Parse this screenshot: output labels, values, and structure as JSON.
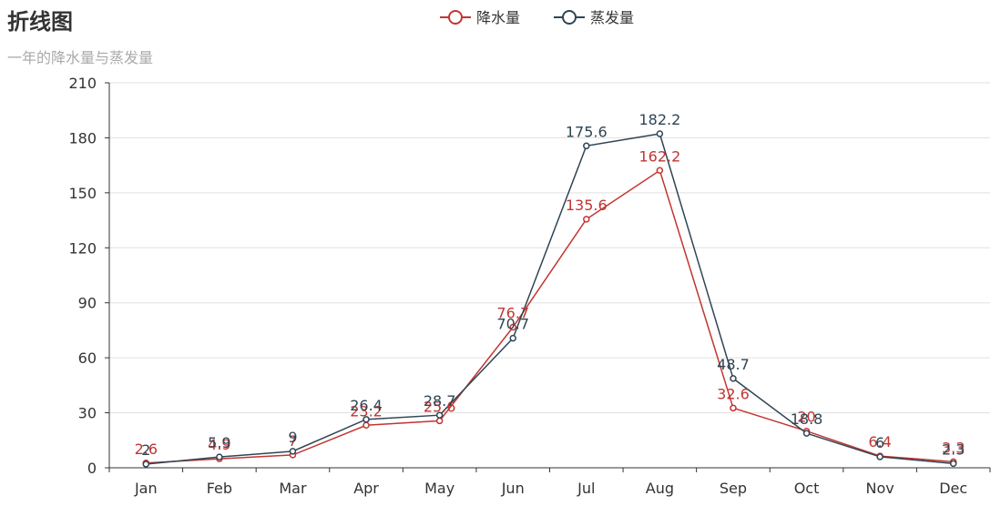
{
  "chart_data": {
    "type": "line",
    "title": "折线图",
    "subtitle": "一年的降水量与蒸发量",
    "categories": [
      "Jan",
      "Feb",
      "Mar",
      "Apr",
      "May",
      "Jun",
      "Jul",
      "Aug",
      "Sep",
      "Oct",
      "Nov",
      "Dec"
    ],
    "series": [
      {
        "name": "降水量",
        "color": "#c23531",
        "values": [
          2.6,
          4.9,
          7,
          23.2,
          25.6,
          76.7,
          135.6,
          162.2,
          32.6,
          20,
          6.4,
          3.3
        ]
      },
      {
        "name": "蒸发量",
        "color": "#2f4554",
        "values": [
          2,
          5.9,
          9,
          26.4,
          28.7,
          70.7,
          175.6,
          182.2,
          48.7,
          18.8,
          6,
          2.3
        ]
      }
    ],
    "ylim": [
      0,
      210
    ],
    "yticks": [
      0,
      30,
      60,
      90,
      120,
      150,
      180,
      210
    ],
    "grid": true,
    "legend_position": "top-center",
    "xlabel": "",
    "ylabel": ""
  }
}
